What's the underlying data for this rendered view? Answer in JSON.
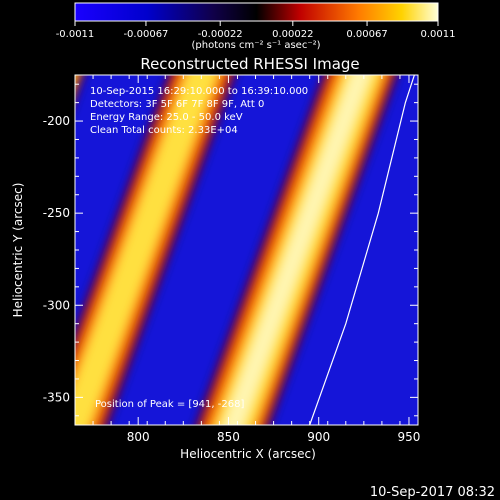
{
  "colorbar": {
    "tick_labels": [
      "-0.0011",
      "-0.00067",
      "-0.00022",
      "0.00022",
      "0.00067",
      "0.0011"
    ],
    "tick_values": [
      -0.0011,
      -0.00067,
      -0.00022,
      0.00022,
      0.00067,
      0.0011
    ],
    "unit_label": "(photons cm⁻² s⁻¹ asec⁻²)",
    "range": [
      -0.0011,
      0.0011
    ]
  },
  "chart_data": {
    "type": "heatmap",
    "title": "Reconstructed RHESSI Image",
    "xlabel": "Heliocentric X (arcsec)",
    "ylabel": "Heliocentric Y (arcsec)",
    "xlim": [
      765,
      955
    ],
    "ylim": [
      -365,
      -175
    ],
    "x_ticks": [
      800,
      850,
      900,
      950
    ],
    "x_tick_labels": [
      "800",
      "850",
      "900",
      "950"
    ],
    "y_ticks": [
      -200,
      -250,
      -300,
      -350
    ],
    "y_tick_labels": [
      "-200",
      "-250",
      "-300",
      "-350"
    ],
    "info_lines": [
      "10-Sep-2015 16:29:10.000 to 16:39:10.000",
      "Detectors: 3F 5F 6F 7F 8F 9F, Att 0",
      "Energy Range: 25.0 - 50.0 keV",
      "Clean     Total counts: 2.33E+04"
    ],
    "peak_label": "Position of Peak = [941, -268]",
    "peak_position": [
      941,
      -268
    ],
    "limb_curve": [
      [
        895,
        -365
      ],
      [
        915,
        -310
      ],
      [
        933,
        -250
      ],
      [
        948,
        -190
      ],
      [
        953,
        -175
      ]
    ]
  },
  "footer": {
    "timestamp": "10-Sep-2017 08:32"
  }
}
